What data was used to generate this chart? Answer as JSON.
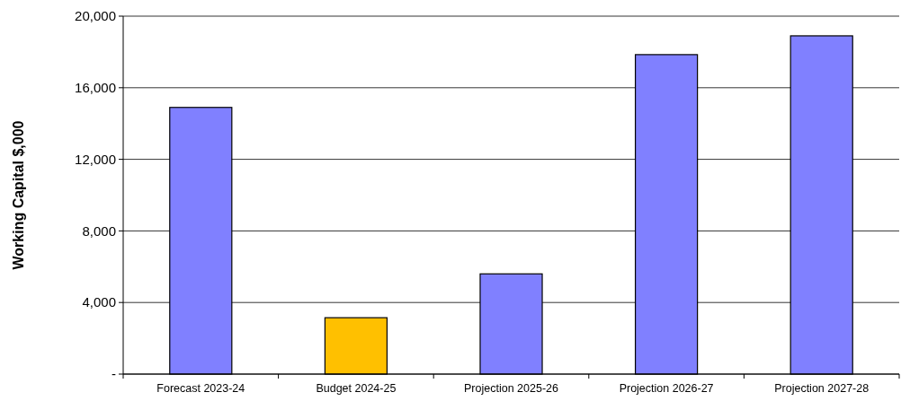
{
  "chart_data": {
    "type": "bar",
    "ylabel": "Working Capital $,000",
    "categories": [
      "Forecast 2023-24",
      "Budget 2024-25",
      "Projection 2025-26",
      "Projection 2026-27",
      "Projection 2027-28"
    ],
    "values": [
      14900,
      3150,
      5600,
      17850,
      18900
    ],
    "colors": [
      "#8080ff",
      "#ffc000",
      "#8080ff",
      "#8080ff",
      "#8080ff"
    ],
    "ylim": [
      0,
      20000
    ],
    "yticks": [
      {
        "value": 0,
        "label": "-"
      },
      {
        "value": 4000,
        "label": "4,000"
      },
      {
        "value": 8000,
        "label": "8,000"
      },
      {
        "value": 12000,
        "label": "12,000"
      },
      {
        "value": 16000,
        "label": "16,000"
      },
      {
        "value": 20000,
        "label": "20,000"
      }
    ],
    "grid": "y"
  }
}
